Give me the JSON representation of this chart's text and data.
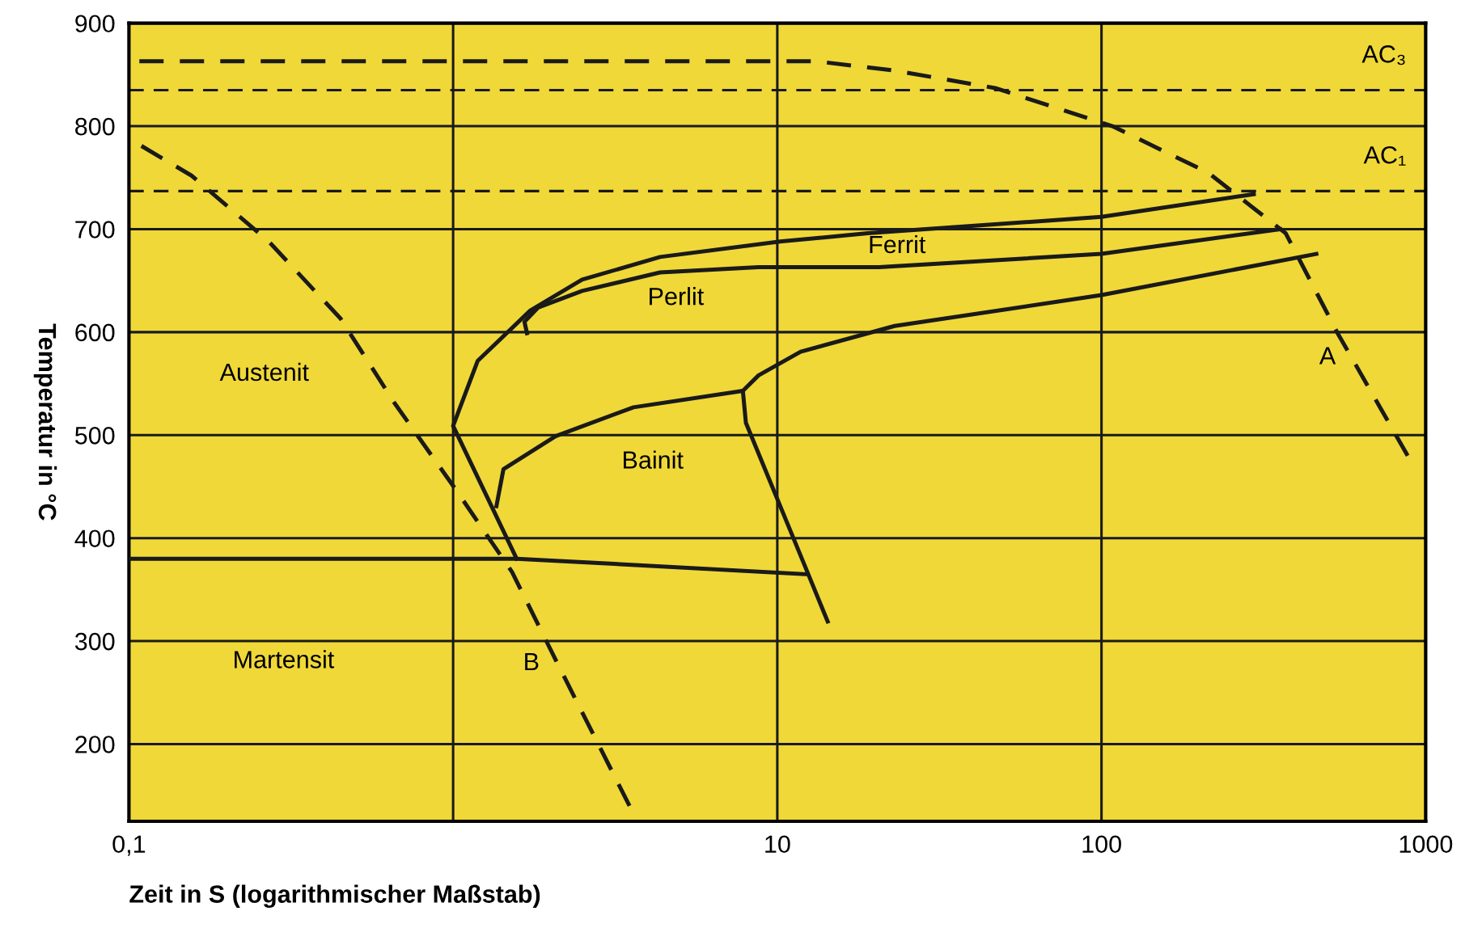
{
  "chart_data": {
    "type": "line",
    "xlabel": "Zeit in S (logarithmischer Maßstab)",
    "ylabel": "Temperatur in °C",
    "log": "x",
    "xlim": [
      0.1,
      1000
    ],
    "ylim": [
      125,
      900
    ],
    "xticks": [
      {
        "value": 0.1,
        "label": "0,1"
      },
      {
        "value": 1,
        "label": null
      },
      10,
      100,
      1000
    ],
    "yticks": [
      200,
      300,
      400,
      500,
      600,
      700,
      800,
      900
    ],
    "grid": true,
    "legend": false,
    "marker": "none",
    "series": [
      {
        "color": "#1a1a1a",
        "line_style": "solid",
        "x": [
          1.57,
          1.0,
          1.19,
          1.73,
          2.5,
          4.35,
          10.2,
          19,
          100,
          295
        ],
        "values": [
          380,
          509,
          572,
          621,
          651,
          673,
          688,
          696,
          712,
          734
        ]
      },
      {
        "color": "#1a1a1a",
        "line_style": "solid",
        "x": [
          1.69,
          1.66,
          1.83,
          2.5,
          4.35,
          8.75,
          20.6,
          100,
          356
        ],
        "values": [
          599,
          610,
          624,
          640,
          658,
          663,
          663,
          676,
          700
        ]
      },
      {
        "color": "#1a1a1a",
        "line_style": "solid",
        "x": [
          1.36,
          1.43,
          2.07,
          3.6,
          7.83,
          8.75,
          11.8,
          23,
          100,
          460
        ],
        "values": [
          431,
          467,
          499,
          527,
          543,
          558,
          581,
          606,
          636,
          676
        ]
      },
      {
        "color": "#1a1a1a",
        "line_style": "solid",
        "x": [
          7.83,
          8.0,
          12.2,
          14.3
        ],
        "values": [
          543,
          512,
          372,
          319
        ]
      },
      {
        "color": "#1a1a1a",
        "line_style": "solid",
        "x": [
          0.1,
          1.57,
          12.2
        ],
        "values": [
          380,
          380,
          365
        ]
      },
      {
        "color": "#1a1a1a",
        "line_style": "dashed",
        "x": [
          0.1,
          10,
          13.2,
          23,
          47,
          108,
          213,
          370,
          535,
          880
        ],
        "values": [
          863,
          863,
          863,
          854,
          837,
          800,
          755,
          696,
          599,
          480
        ]
      },
      {
        "color": "#1a1a1a",
        "line_style": "dashed",
        "x": [
          0.1,
          0.156,
          0.27,
          0.45,
          0.66,
          1.03,
          1.52,
          2.1,
          3.5
        ],
        "values": [
          788,
          752,
          688,
          613,
          531,
          445,
          367,
          278,
          140
        ]
      }
    ],
    "ref_lines": [
      {
        "axis": "y",
        "value": 835,
        "label": "AC₃",
        "color": "#1a1a1a",
        "line_style": "dashed"
      },
      {
        "axis": "y",
        "value": 737,
        "label": "AC₁",
        "color": "#1a1a1a",
        "line_style": "dashed"
      }
    ],
    "annotations": [
      {
        "text": "A",
        "x": 600,
        "y": 575
      },
      {
        "text": "B",
        "x": 2.1,
        "y": 278
      },
      "Austenit",
      "Perlit",
      "Ferrit",
      "Bainit",
      "Martensit"
    ]
  }
}
